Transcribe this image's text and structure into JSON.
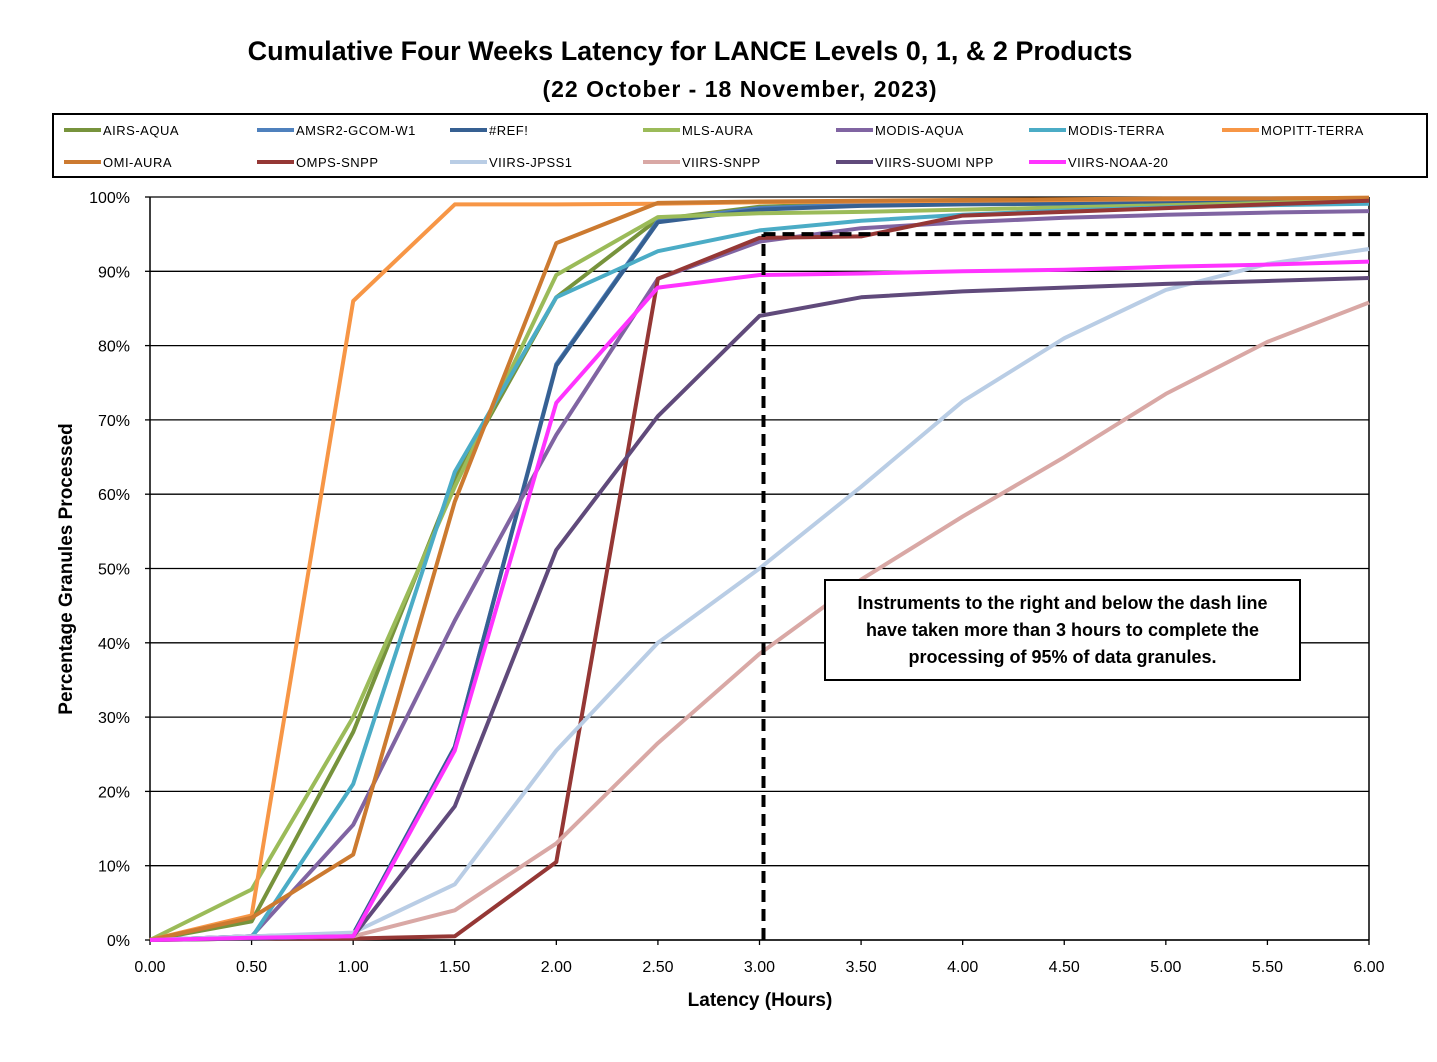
{
  "chart_data": {
    "type": "line",
    "title": "Cumulative Four Weeks Latency  for LANCE Levels 0, 1, & 2 Products",
    "subtitle": "(22  October   -  18  November,  2023)",
    "xlabel": "Latency (Hours)",
    "ylabel": "Percentage Granules Processed",
    "xlim": [
      0,
      6
    ],
    "ylim": [
      0,
      100
    ],
    "x_ticks": [
      "0.00",
      "0.50",
      "1.00",
      "1.50",
      "2.00",
      "2.50",
      "3.00",
      "3.50",
      "4.00",
      "4.50",
      "5.00",
      "5.50",
      "6.00"
    ],
    "y_ticks": [
      "0%",
      "10%",
      "20%",
      "30%",
      "40%",
      "50%",
      "60%",
      "70%",
      "80%",
      "90%",
      "100%"
    ],
    "grid": "horizontal",
    "legend_position": "top",
    "x": [
      0,
      0.5,
      1.0,
      1.5,
      2.0,
      2.5,
      3.0,
      3.5,
      4.0,
      4.5,
      5.0,
      5.5,
      6.0
    ],
    "series": [
      {
        "name": "AIRS-AQUA",
        "color": "#77933C",
        "values": [
          0,
          2.5,
          28,
          62,
          86.5,
          97,
          98.7,
          99.1,
          99.3,
          99.4,
          99.5,
          99.6,
          99.7
        ]
      },
      {
        "name": "AMSR2-GCOM-W1",
        "color": "#4F81BD",
        "values": [
          0,
          0.5,
          0.8,
          26,
          77.5,
          96.8,
          98.5,
          99.0,
          99.2,
          99.3,
          99.4,
          99.5,
          99.6
        ]
      },
      {
        "name": "#REF!",
        "color": "#366092",
        "values": [
          0,
          0.5,
          0.8,
          26,
          77.3,
          96.6,
          98.3,
          98.8,
          99.0,
          99.1,
          99.2,
          99.3,
          99.4
        ]
      },
      {
        "name": "MLS-AURA",
        "color": "#9BBB59",
        "values": [
          0,
          6.8,
          30,
          61,
          89.5,
          97.3,
          97.8,
          98.0,
          98.3,
          98.6,
          98.9,
          99.2,
          99.5
        ]
      },
      {
        "name": "MODIS-AQUA",
        "color": "#8064A2",
        "values": [
          0,
          0.5,
          15.5,
          43,
          68,
          89,
          94,
          95.8,
          96.6,
          97.2,
          97.6,
          97.9,
          98.1
        ]
      },
      {
        "name": "MODIS-TERRA",
        "color": "#4BACC6",
        "values": [
          0,
          0.3,
          21,
          63,
          86.5,
          92.7,
          95.5,
          96.8,
          97.6,
          98.2,
          98.6,
          98.9,
          99.1
        ]
      },
      {
        "name": "MOPITT-TERRA",
        "color": "#F79646",
        "values": [
          0,
          3.3,
          86,
          99,
          99,
          99.1,
          99.3,
          99.4,
          99.5,
          99.6,
          99.7,
          99.8,
          99.9
        ]
      },
      {
        "name": "OMI-AURA",
        "color": "#CC7A30",
        "values": [
          0,
          3.0,
          11.5,
          59,
          93.8,
          99.2,
          99.4,
          99.5,
          99.6,
          99.7,
          99.8,
          99.8,
          99.9
        ]
      },
      {
        "name": "OMPS-SNPP",
        "color": "#953735",
        "values": [
          0,
          0.2,
          0.2,
          0.5,
          10.5,
          89,
          94.5,
          94.7,
          97.5,
          98.0,
          98.5,
          99.0,
          99.5
        ]
      },
      {
        "name": "VIIRS-JPSS1",
        "color": "#B9CDE5",
        "values": [
          0,
          0.5,
          1.0,
          7.5,
          25.5,
          40,
          50,
          61,
          72.5,
          81,
          87.5,
          91,
          93
        ]
      },
      {
        "name": "VIIRS-SNPP",
        "color": "#D9A8A5",
        "values": [
          0,
          0.2,
          0.5,
          4.0,
          13,
          26.5,
          38.5,
          48.5,
          57,
          65,
          73.5,
          80.5,
          85.8
        ]
      },
      {
        "name": "VIIRS-SUOMI NPP",
        "color": "#604A7B",
        "values": [
          0,
          0.2,
          0.5,
          18,
          52.5,
          70.5,
          84,
          86.5,
          87.3,
          87.8,
          88.3,
          88.7,
          89.1
        ]
      },
      {
        "name": "VIIRS-NOAA-20",
        "color": "#FF33FF",
        "values": [
          0,
          0.3,
          0.5,
          25.5,
          72.3,
          87.8,
          89.5,
          89.7,
          90.0,
          90.2,
          90.6,
          90.9,
          91.3
        ]
      }
    ],
    "threshold_line": {
      "x": 3.0,
      "y": 95
    },
    "annotation": "Instruments to the right and below the dash line have taken more than 3 hours to complete the processing of 95% of data granules."
  }
}
